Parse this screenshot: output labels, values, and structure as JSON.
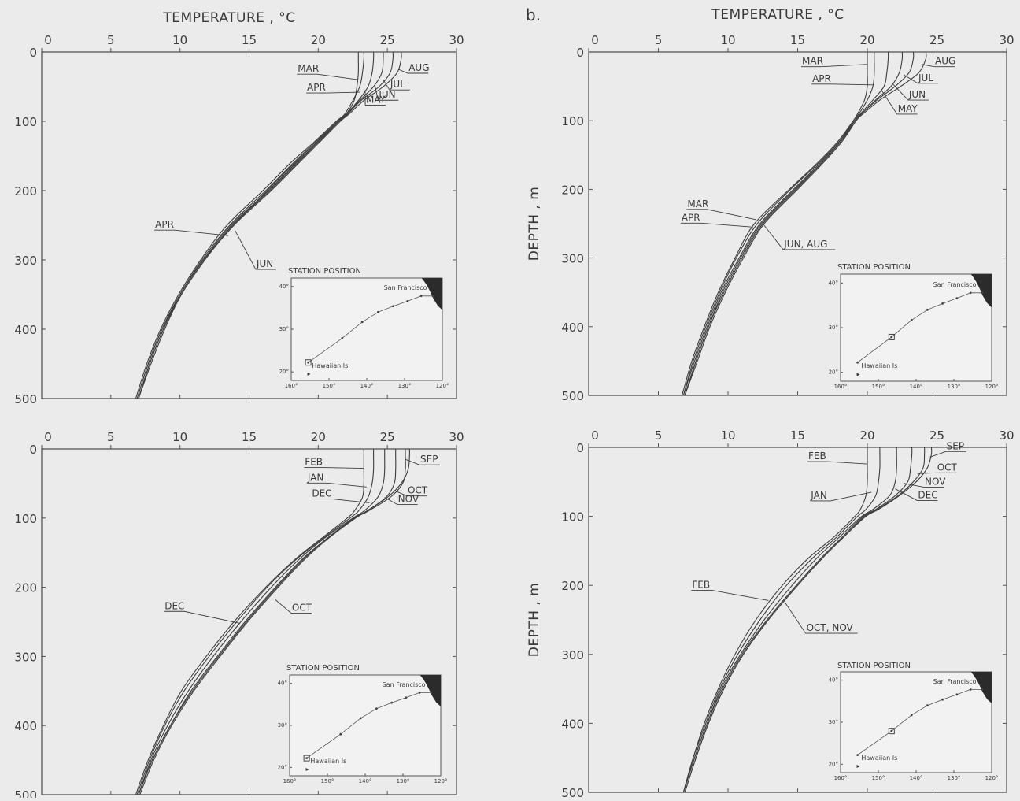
{
  "figure": {
    "panel_letters": [
      "",
      "b."
    ],
    "inset": {
      "title": "STATION POSITION",
      "lat_ticks": [
        "20°",
        "30°",
        "40°"
      ],
      "lon_ticks": [
        "160°",
        "150°",
        "140°",
        "130°",
        "120°"
      ],
      "place_labels": [
        "San Francisco",
        "Hawaiian Is"
      ],
      "lon_range": [
        160,
        120
      ],
      "lat_range": [
        18,
        42
      ],
      "track": [
        {
          "lon": 155.5,
          "lat": 22.2
        },
        {
          "lon": 146.5,
          "lat": 27.9
        },
        {
          "lon": 141.2,
          "lat": 31.7
        },
        {
          "lon": 137.0,
          "lat": 34.0
        },
        {
          "lon": 133.0,
          "lat": 35.4
        },
        {
          "lon": 129.2,
          "lat": 36.6
        },
        {
          "lon": 125.6,
          "lat": 37.8
        },
        {
          "lon": 122.5,
          "lat": 37.8
        }
      ],
      "hawaii": {
        "lon": 155.3,
        "lat": 19.5
      }
    }
  },
  "chart_data": [
    {
      "type": "line",
      "panel": "top-left",
      "title": "",
      "xlabel": "TEMPERATURE , °C",
      "ylabel": "",
      "xlim": [
        0,
        30
      ],
      "ylim": [
        500,
        0
      ],
      "x_ticks": [
        0,
        5,
        10,
        15,
        20,
        25,
        30
      ],
      "y_ticks": [
        0,
        100,
        200,
        300,
        400,
        500
      ],
      "inset_station": {
        "lon": 155.5,
        "lat": 22.2
      },
      "depth": [
        0,
        10,
        30,
        50,
        70,
        90,
        100,
        130,
        160,
        200,
        250,
        300,
        350,
        400,
        450,
        500
      ],
      "series": [
        {
          "name": "MAR",
          "values": [
            22.9,
            22.9,
            22.9,
            22.8,
            22.6,
            22.0,
            21.4,
            19.9,
            18.3,
            16.3,
            13.9,
            11.7,
            10.0,
            8.7,
            7.7,
            6.9
          ]
        },
        {
          "name": "APR",
          "values": [
            23.3,
            23.3,
            23.2,
            23.0,
            22.5,
            21.9,
            21.3,
            19.7,
            18.0,
            16.0,
            13.4,
            11.5,
            9.9,
            8.6,
            7.6,
            6.8
          ]
        },
        {
          "name": "MAY",
          "values": [
            24.0,
            24.0,
            23.9,
            23.6,
            22.9,
            22.0,
            21.4,
            19.8,
            18.2,
            16.2,
            13.6,
            11.6,
            10.0,
            8.7,
            7.7,
            6.9
          ]
        },
        {
          "name": "JUN",
          "values": [
            24.7,
            24.7,
            24.6,
            24.0,
            23.0,
            22.1,
            21.5,
            20.0,
            18.5,
            16.5,
            13.8,
            11.8,
            10.1,
            8.8,
            7.8,
            7.0
          ]
        },
        {
          "name": "JUL",
          "values": [
            25.4,
            25.4,
            25.2,
            24.4,
            23.1,
            22.1,
            21.5,
            20.0,
            18.4,
            16.4,
            13.7,
            11.7,
            10.0,
            8.8,
            7.8,
            7.0
          ]
        },
        {
          "name": "AUG",
          "values": [
            26.0,
            26.0,
            25.7,
            24.7,
            23.3,
            22.2,
            21.6,
            20.1,
            18.6,
            16.6,
            13.9,
            11.8,
            10.1,
            8.9,
            7.9,
            7.0
          ]
        }
      ],
      "annotations": [
        {
          "text": "MAR",
          "x": 22.9,
          "y": 40
        },
        {
          "text": "APR",
          "x": 23.0,
          "y": 58
        },
        {
          "text": "MAY",
          "x": 23.4,
          "y": 55
        },
        {
          "text": "JUN",
          "x": 24.1,
          "y": 48
        },
        {
          "text": "JUL",
          "x": 24.7,
          "y": 40
        },
        {
          "text": "AUG",
          "x": 25.8,
          "y": 25
        },
        {
          "text": "APR",
          "x": 13.5,
          "y": 265
        },
        {
          "text": "JUN",
          "x": 14.0,
          "y": 258
        }
      ]
    },
    {
      "type": "line",
      "panel": "top-right",
      "title": "",
      "xlabel": "TEMPERATURE , °C",
      "ylabel": "DEPTH , m",
      "xlim": [
        0,
        30
      ],
      "ylim": [
        500,
        0
      ],
      "x_ticks": [
        0,
        5,
        10,
        15,
        20,
        25,
        30
      ],
      "y_ticks": [
        0,
        100,
        200,
        300,
        400,
        500
      ],
      "inset_station": {
        "lon": 146.5,
        "lat": 27.9
      },
      "depth": [
        0,
        10,
        30,
        50,
        70,
        90,
        100,
        130,
        160,
        200,
        250,
        300,
        350,
        400,
        450,
        500
      ],
      "series": [
        {
          "name": "MAR",
          "values": [
            20.0,
            20.0,
            20.0,
            20.0,
            19.8,
            19.3,
            19.0,
            18.0,
            16.6,
            14.5,
            12.1,
            10.6,
            9.4,
            8.4,
            7.5,
            6.8
          ]
        },
        {
          "name": "APR",
          "values": [
            20.5,
            20.5,
            20.5,
            20.4,
            20.0,
            19.4,
            19.0,
            17.9,
            16.5,
            14.4,
            11.9,
            10.5,
            9.3,
            8.3,
            7.4,
            6.7
          ]
        },
        {
          "name": "MAY",
          "values": [
            21.5,
            21.5,
            21.4,
            21.2,
            20.4,
            19.5,
            19.1,
            18.0,
            16.7,
            14.7,
            12.3,
            10.8,
            9.5,
            8.5,
            7.6,
            6.8
          ]
        },
        {
          "name": "JUN",
          "values": [
            22.5,
            22.5,
            22.3,
            21.7,
            20.6,
            19.6,
            19.1,
            18.1,
            16.8,
            14.9,
            12.5,
            11.0,
            9.7,
            8.6,
            7.7,
            6.9
          ]
        },
        {
          "name": "JUL",
          "values": [
            23.3,
            23.3,
            23.0,
            22.0,
            20.7,
            19.6,
            19.2,
            18.1,
            16.8,
            14.8,
            12.4,
            10.9,
            9.6,
            8.6,
            7.7,
            6.9
          ]
        },
        {
          "name": "AUG",
          "values": [
            24.2,
            24.2,
            23.7,
            22.4,
            20.9,
            19.7,
            19.2,
            18.2,
            16.9,
            15.0,
            12.6,
            11.1,
            9.8,
            8.7,
            7.8,
            6.9
          ]
        }
      ],
      "annotations": [
        {
          "text": "MAR",
          "x": 20.0,
          "y": 18
        },
        {
          "text": "APR",
          "x": 20.4,
          "y": 48
        },
        {
          "text": "MAY",
          "x": 21.0,
          "y": 55
        },
        {
          "text": "JUN",
          "x": 21.8,
          "y": 46
        },
        {
          "text": "JUL",
          "x": 22.6,
          "y": 33
        },
        {
          "text": "AUG",
          "x": 23.9,
          "y": 18
        },
        {
          "text": "MAR",
          "x": 12.0,
          "y": 244
        },
        {
          "text": "APR",
          "x": 11.8,
          "y": 255
        },
        {
          "text": "JUN, AUG",
          "x": 12.5,
          "y": 250
        }
      ]
    },
    {
      "type": "line",
      "panel": "bottom-left",
      "title": "",
      "xlabel": "",
      "ylabel": "",
      "xlim": [
        0,
        30
      ],
      "ylim": [
        500,
        0
      ],
      "x_ticks": [
        0,
        5,
        10,
        15,
        20,
        25,
        30
      ],
      "y_ticks": [
        0,
        100,
        200,
        300,
        400,
        500
      ],
      "inset_station": {
        "lon": 155.5,
        "lat": 22.2
      },
      "depth": [
        0,
        10,
        30,
        50,
        70,
        90,
        100,
        130,
        160,
        200,
        250,
        300,
        350,
        400,
        450,
        500
      ],
      "series": [
        {
          "name": "JAN",
          "values": [
            24.0,
            24.0,
            24.0,
            23.9,
            23.6,
            22.9,
            22.3,
            20.3,
            18.4,
            16.3,
            14.1,
            12.1,
            10.3,
            8.9,
            7.8,
            6.9
          ]
        },
        {
          "name": "FEB",
          "values": [
            23.3,
            23.3,
            23.3,
            23.3,
            23.2,
            22.6,
            22.1,
            20.2,
            18.3,
            16.2,
            13.9,
            11.9,
            10.1,
            8.8,
            7.7,
            6.8
          ]
        },
        {
          "name": "DEC",
          "values": [
            24.8,
            24.8,
            24.8,
            24.7,
            24.3,
            23.3,
            22.5,
            20.4,
            18.6,
            16.6,
            14.4,
            12.4,
            10.6,
            9.1,
            7.9,
            7.0
          ]
        },
        {
          "name": "NOV",
          "values": [
            25.6,
            25.6,
            25.6,
            25.5,
            24.9,
            23.5,
            22.6,
            20.6,
            18.8,
            16.9,
            14.7,
            12.7,
            10.8,
            9.3,
            8.0,
            7.0
          ]
        },
        {
          "name": "OCT",
          "values": [
            26.3,
            26.3,
            26.3,
            26.1,
            25.2,
            23.6,
            22.7,
            20.7,
            19.0,
            17.1,
            14.9,
            12.9,
            11.0,
            9.4,
            8.1,
            7.1
          ]
        },
        {
          "name": "SEP",
          "values": [
            26.6,
            26.6,
            26.5,
            26.0,
            25.0,
            23.5,
            22.6,
            20.6,
            18.9,
            17.0,
            14.8,
            12.8,
            10.9,
            9.3,
            8.0,
            7.0
          ]
        }
      ],
      "annotations": [
        {
          "text": "FEB",
          "x": 23.3,
          "y": 28
        },
        {
          "text": "JAN",
          "x": 23.5,
          "y": 55
        },
        {
          "text": "DEC",
          "x": 23.7,
          "y": 78
        },
        {
          "text": "SEP",
          "x": 26.3,
          "y": 15
        },
        {
          "text": "OCT",
          "x": 25.5,
          "y": 60
        },
        {
          "text": "NOV",
          "x": 24.8,
          "y": 70
        },
        {
          "text": "DEC",
          "x": 14.3,
          "y": 252
        },
        {
          "text": "OCT",
          "x": 16.9,
          "y": 218
        }
      ]
    },
    {
      "type": "line",
      "panel": "bottom-right",
      "title": "",
      "xlabel": "",
      "ylabel": "DEPTH , m",
      "xlim": [
        0,
        30
      ],
      "ylim": [
        500,
        0
      ],
      "x_ticks": [
        0,
        5,
        10,
        15,
        20,
        25,
        30
      ],
      "y_ticks": [
        0,
        100,
        200,
        300,
        400,
        500
      ],
      "inset_station": {
        "lon": 146.5,
        "lat": 27.9
      },
      "depth": [
        0,
        10,
        30,
        50,
        70,
        90,
        100,
        130,
        160,
        200,
        250,
        300,
        350,
        400,
        450,
        500
      ],
      "series": [
        {
          "name": "FEB",
          "values": [
            20.0,
            20.0,
            20.0,
            20.0,
            19.9,
            19.5,
            19.1,
            17.6,
            15.8,
            13.9,
            12.0,
            10.5,
            9.3,
            8.3,
            7.5,
            6.8
          ]
        },
        {
          "name": "JAN",
          "values": [
            20.9,
            20.9,
            20.9,
            20.8,
            20.6,
            19.9,
            19.3,
            17.8,
            16.1,
            14.2,
            12.3,
            10.7,
            9.4,
            8.4,
            7.5,
            6.8
          ]
        },
        {
          "name": "DEC",
          "values": [
            22.1,
            22.1,
            22.1,
            22.0,
            21.6,
            20.4,
            19.6,
            18.0,
            16.4,
            14.6,
            12.6,
            10.9,
            9.5,
            8.5,
            7.6,
            6.8
          ]
        },
        {
          "name": "NOV",
          "values": [
            23.2,
            23.2,
            23.1,
            22.9,
            22.0,
            20.6,
            19.7,
            18.2,
            16.7,
            14.9,
            12.8,
            11.0,
            9.6,
            8.5,
            7.6,
            6.8
          ]
        },
        {
          "name": "OCT",
          "values": [
            24.1,
            24.1,
            24.0,
            23.3,
            22.2,
            20.7,
            19.8,
            18.3,
            16.8,
            15.0,
            12.9,
            11.1,
            9.7,
            8.6,
            7.7,
            6.9
          ]
        },
        {
          "name": "SEP",
          "values": [
            24.6,
            24.6,
            24.3,
            23.5,
            22.3,
            20.8,
            19.9,
            18.3,
            16.8,
            15.0,
            12.9,
            11.1,
            9.7,
            8.6,
            7.7,
            6.9
          ]
        }
      ],
      "annotations": [
        {
          "text": "FEB",
          "x": 20.0,
          "y": 24
        },
        {
          "text": "JAN",
          "x": 20.3,
          "y": 65
        },
        {
          "text": "DEC",
          "x": 22.0,
          "y": 60
        },
        {
          "text": "NOV",
          "x": 22.6,
          "y": 52
        },
        {
          "text": "OCT",
          "x": 23.6,
          "y": 38
        },
        {
          "text": "SEP",
          "x": 24.5,
          "y": 14
        },
        {
          "text": "FEB",
          "x": 12.9,
          "y": 222
        },
        {
          "text": "OCT, NOV",
          "x": 14.1,
          "y": 225
        }
      ]
    }
  ]
}
